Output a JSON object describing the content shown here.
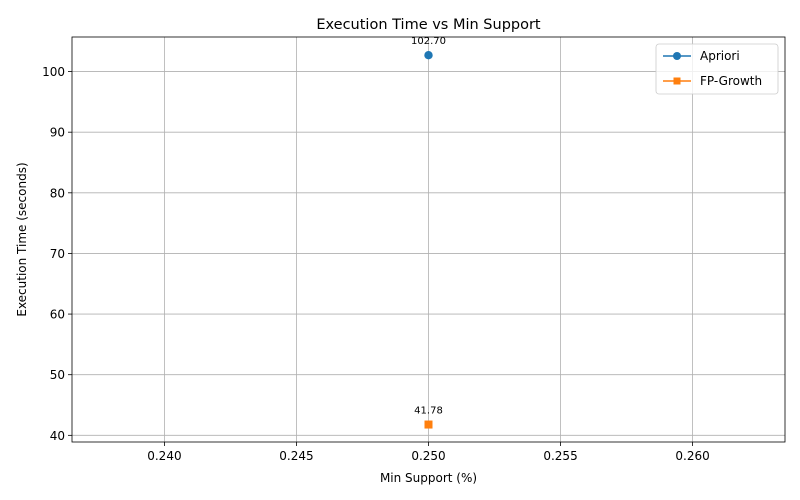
{
  "chart_data": {
    "type": "line",
    "title": "Execution Time vs Min Support",
    "xlabel": "Min Support (%)",
    "ylabel": "Execution Time (seconds)",
    "xlim": [
      0.2365,
      0.2635
    ],
    "ylim": [
      38.9,
      105.7
    ],
    "xticks": [
      0.24,
      0.245,
      0.25,
      0.255,
      0.26
    ],
    "xtick_labels": [
      "0.240",
      "0.245",
      "0.250",
      "0.255",
      "0.260"
    ],
    "yticks": [
      40,
      50,
      60,
      70,
      80,
      90,
      100
    ],
    "ytick_labels": [
      "40",
      "50",
      "60",
      "70",
      "80",
      "90",
      "100"
    ],
    "grid": true,
    "legend_position": "top-right",
    "series": [
      {
        "name": "Apriori",
        "color": "#1f77b4",
        "marker": "circle",
        "x": [
          0.25
        ],
        "y": [
          102.7
        ],
        "labels": [
          "102.70"
        ]
      },
      {
        "name": "FP-Growth",
        "color": "#ff7f0e",
        "marker": "square",
        "x": [
          0.25
        ],
        "y": [
          41.78
        ],
        "labels": [
          "41.78"
        ]
      }
    ]
  }
}
